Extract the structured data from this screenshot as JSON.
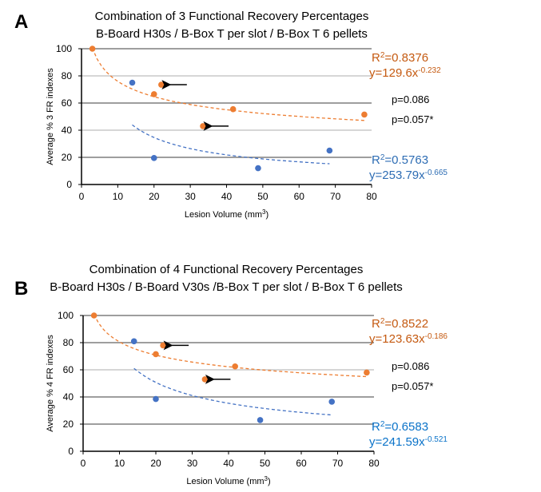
{
  "colors": {
    "orange": "#ED7D31",
    "blue": "#4472C4",
    "orange_label": "#C55A11",
    "blue_label_a": "#2E6DB4",
    "blue_label_b": "#0B73C9",
    "grid_dark": "#7f7f7f",
    "grid_light": "#c8c8c8"
  },
  "chart_data": [
    {
      "type": "scatter",
      "panel_label": "A",
      "title": [
        "Combination of 3 Functional Recovery Percentages",
        "B-Board H30s / B-Box T per slot / B-Box T 6 pellets"
      ],
      "xlabel": "Lesion Volume (mm",
      "xlabel_sup": "3",
      "xlabel_end": ")",
      "ylabel": "Average % 3 FR indexes",
      "xlim": [
        0,
        80
      ],
      "ylim": [
        0,
        100
      ],
      "xticks": [
        "0",
        "10",
        "20",
        "30",
        "40",
        "50",
        "60",
        "70",
        "80"
      ],
      "yticks": [
        "0",
        "20",
        "40",
        "60",
        "80",
        "100"
      ],
      "grid": true,
      "series": [
        {
          "color": "orange",
          "x": [
            3,
            20,
            22,
            33.5,
            41.8,
            78
          ],
          "y": [
            100,
            66.5,
            73.5,
            43,
            55.5,
            51.5
          ],
          "trend": {
            "a": 129.6,
            "b": -0.232,
            "from": 3,
            "to": 78,
            "r2_label": "R",
            "r2_sup": "2",
            "r2_value": "=0.8376",
            "eq": "y=129.6x",
            "eq_sup": "-0.232",
            "label_color": "orange_label"
          }
        },
        {
          "color": "blue",
          "x": [
            14,
            20,
            48.7,
            68.4
          ],
          "y": [
            75,
            19.5,
            12,
            25
          ],
          "trend": {
            "a": 253.79,
            "b": -0.665,
            "from": 14,
            "to": 68.4,
            "r2_label": "R",
            "r2_sup": "2",
            "r2_value": "=0.5763",
            "eq": "y=253.79x",
            "eq_sup": "-0.665",
            "label_color": "blue_label_a"
          }
        }
      ],
      "arrows": [
        {
          "x": 22,
          "y": 73.5
        },
        {
          "x": 33.5,
          "y": 43
        }
      ],
      "p_values": [
        "p=0.086",
        "p=0.057*"
      ]
    },
    {
      "type": "scatter",
      "panel_label": "B",
      "title": [
        "Combination of 4 Functional Recovery Percentages",
        "B-Board H30s / B-Board V30s /B-Box T per slot / B-Box T 6 pellets"
      ],
      "xlabel": "Lesion Volume (mm",
      "xlabel_sup": "3",
      "xlabel_end": ")",
      "ylabel": "Average % 4 FR indexes",
      "xlim": [
        0,
        80
      ],
      "ylim": [
        0,
        100
      ],
      "xticks": [
        "0",
        "10",
        "20",
        "30",
        "40",
        "50",
        "60",
        "70",
        "80"
      ],
      "yticks": [
        "0",
        "20",
        "40",
        "60",
        "80",
        "100"
      ],
      "grid": true,
      "series": [
        {
          "color": "orange",
          "x": [
            3,
            20,
            22,
            33.5,
            41.8,
            78
          ],
          "y": [
            100,
            71.5,
            78,
            53,
            62.5,
            58
          ],
          "trend": {
            "a": 123.63,
            "b": -0.186,
            "from": 3,
            "to": 78,
            "r2_label": "R",
            "r2_sup": "2",
            "r2_value": "=0.8522",
            "eq": "y=123.63x",
            "eq_sup": "-0.186",
            "label_color": "orange_label"
          }
        },
        {
          "color": "blue",
          "x": [
            14,
            20,
            48.7,
            68.4
          ],
          "y": [
            81,
            38.5,
            23,
            36.5
          ],
          "trend": {
            "a": 241.59,
            "b": -0.521,
            "from": 14,
            "to": 68.4,
            "r2_label": "R",
            "r2_sup": "2",
            "r2_value": "=0.6583",
            "eq": "y=241.59x",
            "eq_sup": "-0.521",
            "label_color": "blue_label_b"
          }
        }
      ],
      "arrows": [
        {
          "x": 22,
          "y": 78
        },
        {
          "x": 33.5,
          "y": 53
        }
      ],
      "p_values": [
        "p=0.086",
        "p=0.057*"
      ]
    }
  ]
}
